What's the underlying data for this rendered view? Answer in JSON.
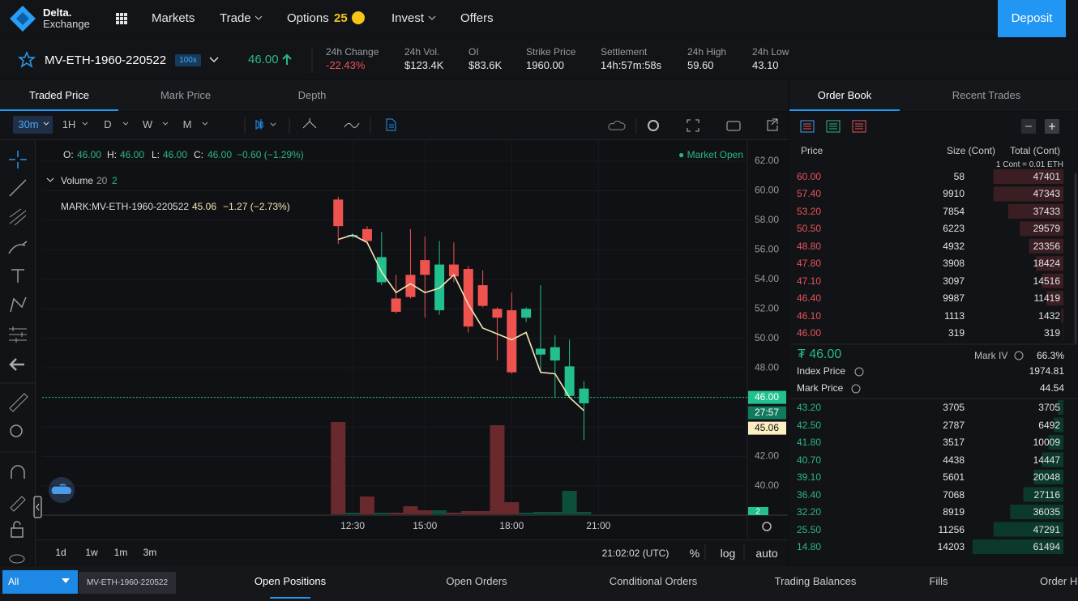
{
  "nav": {
    "brand": [
      "Delta.",
      "Exchange"
    ],
    "menu": [
      "Markets",
      "Trade",
      "Options",
      "Invest",
      "Offers"
    ],
    "options_badge": "25",
    "deposit": "Deposit"
  },
  "ticker": {
    "symbol": "MV-ETH-1960-220522",
    "leverage": "100x",
    "last_price": "46.00",
    "stats": [
      {
        "label": "24h Change",
        "value": "-22.43%"
      },
      {
        "label": "24h Vol.",
        "value": "$123.4K"
      },
      {
        "label": "OI",
        "value": "$83.6K"
      },
      {
        "label": "Strike Price",
        "value": "1960.00"
      },
      {
        "label": "Settlement",
        "value": "14h:57m:58s"
      },
      {
        "label": "24h High",
        "value": "59.60"
      },
      {
        "label": "24h Low",
        "value": "43.10"
      }
    ]
  },
  "chart_tabs": [
    "Traded Price",
    "Mark Price",
    "Depth"
  ],
  "intervals": [
    "30m",
    "1H",
    "D",
    "W",
    "M"
  ],
  "chart": {
    "legend": {
      "o_label": "O:",
      "o": "46.00",
      "h_label": "H:",
      "h": "46.00",
      "l_label": "L:",
      "l": "46.00",
      "c_label": "C:",
      "c": "46.00",
      "change": "−0.60 (−1.29%)",
      "status": "● Market Open"
    },
    "volume_legend": {
      "label": "Volume",
      "period": "20",
      "value": "2"
    },
    "mark_legend": {
      "label": "MARK:MV-ETH-1960-220522",
      "value": "45.06",
      "change": "−1.27 (−2.73%)"
    },
    "ylim": [
      38.08,
      63.48
    ],
    "yticks": [
      {
        "value": 62,
        "label": "62.00"
      },
      {
        "value": 60,
        "label": "60.00"
      },
      {
        "value": 58,
        "label": "58.00"
      },
      {
        "value": 56,
        "label": "56.00"
      },
      {
        "value": 54,
        "label": "54.00"
      },
      {
        "value": 52,
        "label": "52.00"
      },
      {
        "value": 50,
        "label": "50.00"
      },
      {
        "value": 48,
        "label": "48.00"
      },
      {
        "value": 46,
        "label": "46.00"
      },
      {
        "value": 44,
        "label": "44.00"
      },
      {
        "value": 42,
        "label": "42.00"
      },
      {
        "value": 40,
        "label": "40.00"
      }
    ],
    "xlim": [
      1.76,
      26.15
    ],
    "xticks": [
      {
        "value": 12.5,
        "label": "12:30"
      },
      {
        "value": 15,
        "label": "15:00"
      },
      {
        "value": 18,
        "label": "18:00"
      },
      {
        "value": 21,
        "label": "21:00"
      }
    ],
    "t": [
      12,
      12.5,
      13,
      13.5,
      14,
      14.5,
      15,
      15.5,
      16,
      16.5,
      17,
      17.5,
      18,
      18.5,
      19,
      19.5,
      20,
      20.5
    ],
    "open": [
      59.4,
      56.9,
      57.4,
      53.8,
      52.7,
      54.3,
      55.3,
      51.9,
      55.0,
      54.7,
      53.6,
      52.0,
      51.9,
      51.4,
      48.9,
      48.5,
      46.1,
      45.6
    ],
    "high": [
      59.6,
      57.1,
      57.6,
      57.2,
      54.3,
      57.4,
      56.9,
      56.6,
      56.5,
      54.9,
      54.6,
      52.1,
      53.1,
      52.1,
      53.6,
      50.2,
      49.9,
      47.1
    ],
    "low": [
      56.4,
      56.8,
      56.4,
      53.6,
      51.7,
      52.7,
      51.4,
      51.6,
      53.8,
      50.4,
      52.1,
      48.5,
      47.6,
      51.1,
      47.7,
      46.0,
      46.0,
      43.1
    ],
    "close": [
      57.6,
      57.0,
      56.6,
      55.5,
      51.8,
      52.8,
      54.3,
      55.0,
      54.2,
      50.8,
      52.2,
      51.4,
      47.7,
      52.0,
      49.3,
      49.4,
      48.1,
      46.6
    ],
    "volume": [
      114,
      2,
      22,
      2,
      2,
      10,
      5,
      5,
      2,
      4,
      4,
      110,
      15,
      2,
      3,
      3,
      29,
      3
    ],
    "mark_price": [
      56.7,
      57.0,
      56.5,
      54.5,
      53.1,
      53.7,
      53.1,
      53.4,
      54.3,
      52.3,
      50.7,
      50.3,
      49.9,
      50.4,
      47.7,
      47.6,
      46.0,
      45.1
    ],
    "last_price_line": 46,
    "price_tags": [
      "46.00",
      "27:57",
      "45.06"
    ],
    "volume_tag": "2",
    "ranges": [
      "1d",
      "1w",
      "1m",
      "3m"
    ],
    "clock": "21:02:02 (UTC)",
    "scale_buttons": [
      "%",
      "log",
      "auto"
    ]
  },
  "order_book": {
    "tabs": [
      "Order Book",
      "Recent Trades"
    ],
    "headers": [
      "Price",
      "Size (Cont)",
      "Total (Cont)"
    ],
    "note": "1 Cont = 0.01 ETH",
    "asks": [
      [
        "60.00",
        58,
        47401
      ],
      [
        "57.40",
        9910,
        47343
      ],
      [
        "53.20",
        7854,
        37433
      ],
      [
        "50.50",
        6223,
        29579
      ],
      [
        "48.80",
        4932,
        23356
      ],
      [
        "47.80",
        3908,
        18424
      ],
      [
        "47.10",
        3097,
        14516
      ],
      [
        "46.40",
        9987,
        11419
      ],
      [
        "46.10",
        1113,
        1432
      ],
      [
        "46.00",
        319,
        319
      ]
    ],
    "last": "₮ 46.00",
    "mark_iv_label": "Mark IV",
    "mark_iv": "66.3%",
    "index_label": "Index Price",
    "index": "1974.81",
    "mark_label": "Mark Price",
    "mark": "44.54",
    "bids": [
      [
        "43.20",
        3705,
        3705
      ],
      [
        "42.50",
        2787,
        6492
      ],
      [
        "41.80",
        3517,
        10009
      ],
      [
        "40.70",
        4438,
        14447
      ],
      [
        "39.10",
        5601,
        20048
      ],
      [
        "36.40",
        7068,
        27116
      ],
      [
        "32.20",
        8919,
        36035
      ],
      [
        "25.50",
        11256,
        47291
      ],
      [
        "14.80",
        14203,
        61494
      ]
    ]
  },
  "footer": {
    "filter": "All",
    "symbol": "MV-ETH-1960-220522",
    "tabs": [
      "Open Positions",
      "Open Orders",
      "Conditional Orders",
      "Trading Balances",
      "Fills",
      "Order History"
    ]
  }
}
